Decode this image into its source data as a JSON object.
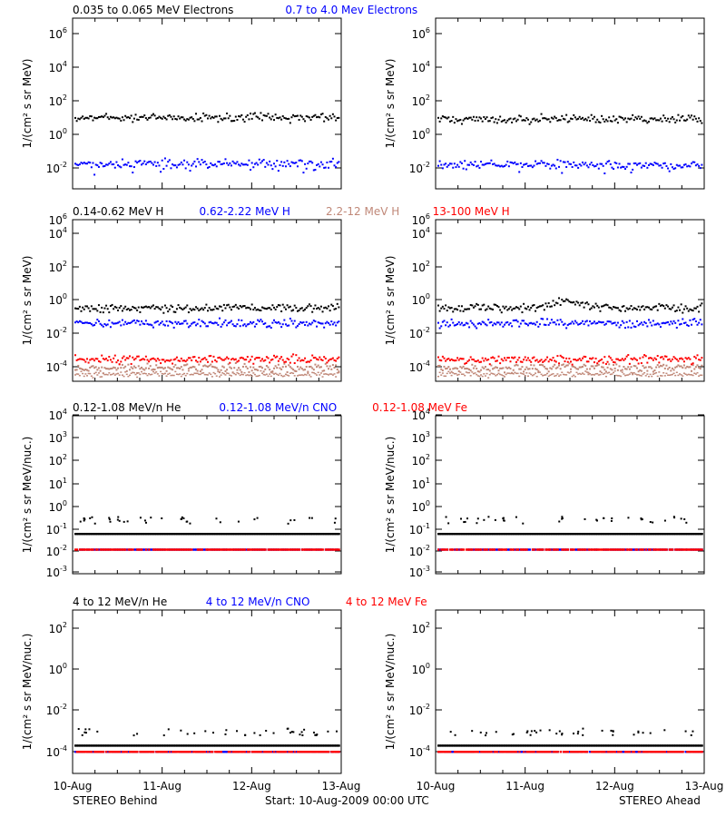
{
  "colors": {
    "black": "#000000",
    "blue": "#0000ff",
    "red": "#ff0000",
    "salmon": "#c08878"
  },
  "footer": {
    "left": "STEREO Behind",
    "center": "Start: 10-Aug-2009 00:00 UTC",
    "right": "STEREO Ahead"
  },
  "rows": [
    {
      "titles": [
        {
          "text": "0.035 to 0.065 MeV Electrons",
          "color": "#000000"
        },
        {
          "text": "0.7 to 4.0 Mev Electrons",
          "color": "#0000ff"
        }
      ],
      "ylabel_html": "1/(cm² s sr MeV)",
      "ticks": [
        {
          "base": "10",
          "exp": "-2"
        },
        {
          "base": "10",
          "exp": "0"
        },
        {
          "base": "10",
          "exp": "2"
        },
        {
          "base": "10",
          "exp": "4"
        },
        {
          "base": "10",
          "exp": "6"
        }
      ]
    },
    {
      "titles": [
        {
          "text": "0.14-0.62 MeV H",
          "color": "#000000"
        },
        {
          "text": "0.62-2.22 MeV H",
          "color": "#0000ff"
        },
        {
          "text": "2.2-12 MeV H",
          "color": "#c08878"
        },
        {
          "text": "13-100 MeV H",
          "color": "#ff0000"
        }
      ],
      "ylabel_html": "1/(cm² s sr MeV)",
      "ticks": [
        {
          "base": "10",
          "exp": "-4"
        },
        {
          "base": "10",
          "exp": "-2"
        },
        {
          "base": "10",
          "exp": "0"
        },
        {
          "base": "10",
          "exp": "2"
        },
        {
          "base": "10",
          "exp": "4"
        },
        {
          "base": "10",
          "exp": "6"
        }
      ]
    },
    {
      "titles": [
        {
          "text": "0.12-1.08 MeV/n He",
          "color": "#000000"
        },
        {
          "text": "0.12-1.08 MeV/n CNO",
          "color": "#0000ff"
        },
        {
          "text": "0.12-1.08 MeV Fe",
          "color": "#ff0000"
        }
      ],
      "ylabel_html": "1/(cm² s sr MeV/nuc.)",
      "ticks": [
        {
          "base": "10",
          "exp": "-3"
        },
        {
          "base": "10",
          "exp": "-2"
        },
        {
          "base": "10",
          "exp": "-1"
        },
        {
          "base": "10",
          "exp": "0"
        },
        {
          "base": "10",
          "exp": "1"
        },
        {
          "base": "10",
          "exp": "2"
        },
        {
          "base": "10",
          "exp": "3"
        },
        {
          "base": "10",
          "exp": "4"
        }
      ]
    },
    {
      "titles": [
        {
          "text": "4 to 12 MeV/n He",
          "color": "#000000"
        },
        {
          "text": "4 to 12 MeV/n CNO",
          "color": "#0000ff"
        },
        {
          "text": "4 to 12 MeV Fe",
          "color": "#ff0000"
        }
      ],
      "ylabel_html": "1/(cm² s sr MeV/nuc.)",
      "ticks": [
        {
          "base": "10",
          "exp": "-4"
        },
        {
          "base": "10",
          "exp": "-2"
        },
        {
          "base": "10",
          "exp": "0"
        },
        {
          "base": "10",
          "exp": "2"
        }
      ]
    }
  ],
  "chart_data": [
    {
      "type": "scatter",
      "panel": "Behind electrons",
      "yscale": "log",
      "ylim": [
        -3,
        7
      ],
      "xtick_labels": [
        "10-Aug",
        "11-Aug",
        "12-Aug",
        "13-Aug"
      ],
      "series": [
        {
          "name": "0.035 to 0.065 MeV Electrons",
          "color": "#000000",
          "log10_level": 1.0
        },
        {
          "name": "0.7 to 4.0 Mev Electrons",
          "color": "#0000ff",
          "log10_level": -1.75
        }
      ]
    },
    {
      "type": "scatter",
      "panel": "Ahead electrons",
      "yscale": "log",
      "ylim": [
        -3,
        7
      ],
      "xtick_labels": [
        "10-Aug",
        "11-Aug",
        "12-Aug",
        "13-Aug"
      ],
      "series": [
        {
          "name": "0.035 to 0.065 MeV Electrons",
          "color": "#000000",
          "log10_level": 0.9
        },
        {
          "name": "0.7 to 4.0 Mev Electrons",
          "color": "#0000ff",
          "log10_level": -1.8
        }
      ]
    },
    {
      "type": "scatter",
      "panel": "Behind protons",
      "yscale": "log",
      "ylim": [
        -5,
        7
      ],
      "xtick_labels": [
        "10-Aug",
        "11-Aug",
        "12-Aug",
        "13-Aug"
      ],
      "series": [
        {
          "name": "0.14-0.62 MeV H",
          "color": "#000000",
          "log10_level": 0.0
        },
        {
          "name": "0.62-2.22 MeV H",
          "color": "#0000ff",
          "log10_level": -1.05
        },
        {
          "name": "2.2-12 MeV H",
          "color": "#c08878",
          "log10_level": -4.1
        },
        {
          "name": "13-100 MeV H",
          "color": "#ff0000",
          "log10_level": -3.5
        }
      ]
    },
    {
      "type": "scatter",
      "panel": "Ahead protons",
      "yscale": "log",
      "ylim": [
        -5,
        7
      ],
      "xtick_labels": [
        "10-Aug",
        "11-Aug",
        "12-Aug",
        "13-Aug"
      ],
      "series": [
        {
          "name": "0.14-0.62 MeV H",
          "color": "#000000",
          "log10_level": 0.0
        },
        {
          "name": "0.62-2.22 MeV H",
          "color": "#0000ff",
          "log10_level": -1.05
        },
        {
          "name": "2.2-12 MeV H",
          "color": "#c08878",
          "log10_level": -4.1
        },
        {
          "name": "13-100 MeV H",
          "color": "#ff0000",
          "log10_level": -3.5
        }
      ]
    },
    {
      "type": "scatter",
      "panel": "Behind low-energy ions",
      "yscale": "log",
      "ylim": [
        -3.5,
        4
      ],
      "xtick_labels": [
        "10-Aug",
        "11-Aug",
        "12-Aug",
        "13-Aug"
      ],
      "series": [
        {
          "name": "0.12-1.08 MeV/n He",
          "color": "#000000",
          "log10_level": -1.3
        },
        {
          "name": "0.12-1.08 MeV/n CNO",
          "color": "#0000ff",
          "log10_level": -2.0
        },
        {
          "name": "0.12-1.08 MeV Fe",
          "color": "#ff0000",
          "log10_level": -2.0
        }
      ]
    },
    {
      "type": "scatter",
      "panel": "Ahead low-energy ions",
      "yscale": "log",
      "ylim": [
        -3.5,
        4
      ],
      "xtick_labels": [
        "10-Aug",
        "11-Aug",
        "12-Aug",
        "13-Aug"
      ],
      "series": [
        {
          "name": "0.12-1.08 MeV/n He",
          "color": "#000000",
          "log10_level": -1.3
        },
        {
          "name": "0.12-1.08 MeV/n CNO",
          "color": "#0000ff",
          "log10_level": -2.0
        },
        {
          "name": "0.12-1.08 MeV Fe",
          "color": "#ff0000",
          "log10_level": -2.0
        }
      ]
    },
    {
      "type": "scatter",
      "panel": "Behind high-energy ions",
      "yscale": "log",
      "ylim": [
        -5,
        3.5
      ],
      "xtick_labels": [
        "10-Aug",
        "11-Aug",
        "12-Aug",
        "13-Aug"
      ],
      "series": [
        {
          "name": "4 to 12 MeV/n He",
          "color": "#000000",
          "log10_level": -3.7
        },
        {
          "name": "4 to 12 MeV/n CNO",
          "color": "#0000ff",
          "log10_level": -4.0
        },
        {
          "name": "4 to 12 MeV Fe",
          "color": "#ff0000",
          "log10_level": -4.0
        }
      ]
    },
    {
      "type": "scatter",
      "panel": "Ahead high-energy ions",
      "yscale": "log",
      "ylim": [
        -5,
        3.5
      ],
      "xtick_labels": [
        "10-Aug",
        "11-Aug",
        "12-Aug",
        "13-Aug"
      ],
      "series": [
        {
          "name": "4 to 12 MeV/n He",
          "color": "#000000",
          "log10_level": -3.7
        },
        {
          "name": "4 to 12 MeV/n CNO",
          "color": "#0000ff",
          "log10_level": -4.0
        },
        {
          "name": "4 to 12 MeV Fe",
          "color": "#ff0000",
          "log10_level": -4.0
        }
      ]
    }
  ],
  "xtick_labels": [
    "10-Aug",
    "11-Aug",
    "12-Aug",
    "13-Aug"
  ]
}
